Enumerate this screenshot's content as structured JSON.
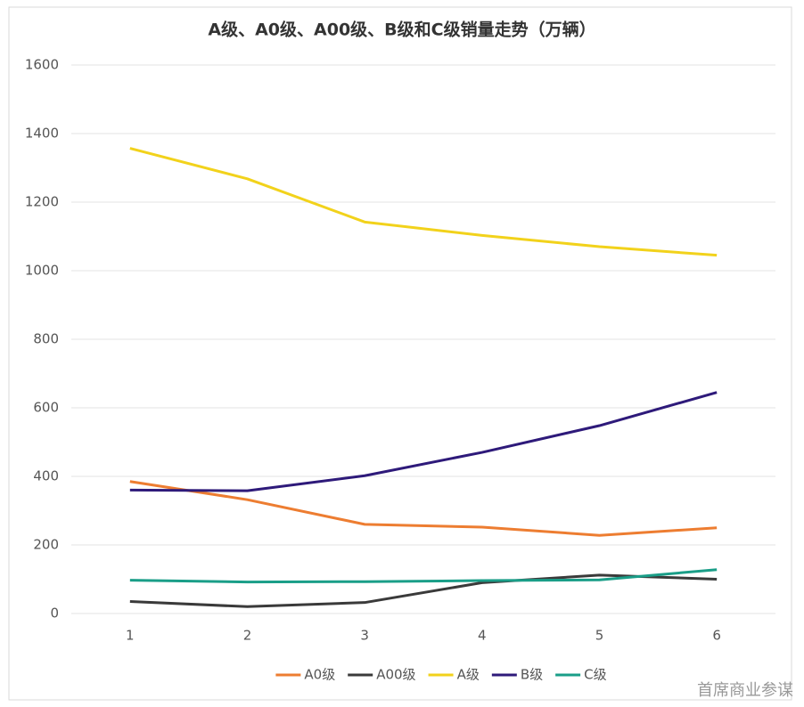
{
  "chart_data": {
    "type": "line",
    "title": "A级、A0级、A00级、B级和C级销量走势（万辆）",
    "x": [
      1,
      2,
      3,
      4,
      5,
      6
    ],
    "xlim": [
      0.5,
      6.5
    ],
    "xticks": [
      1,
      2,
      3,
      4,
      5,
      6
    ],
    "ylim": [
      0,
      1600
    ],
    "yticks": [
      0,
      200,
      400,
      600,
      800,
      1000,
      1200,
      1400,
      1600
    ],
    "grid": true,
    "legend": "bottom",
    "series": [
      {
        "name": "A0级",
        "color": "#ED7D31",
        "values": [
          385,
          332,
          260,
          252,
          228,
          250
        ]
      },
      {
        "name": "A00级",
        "color": "#3A3A3A",
        "values": [
          35,
          20,
          32,
          90,
          112,
          100
        ]
      },
      {
        "name": "A级",
        "color": "#F2D21B",
        "values": [
          1357,
          1268,
          1142,
          1103,
          1070,
          1045
        ]
      },
      {
        "name": "B级",
        "color": "#2E1A7A",
        "values": [
          360,
          358,
          402,
          470,
          548,
          645
        ]
      },
      {
        "name": "C级",
        "color": "#1A9E88",
        "values": [
          97,
          92,
          93,
          96,
          98,
          128
        ]
      }
    ]
  },
  "watermark": "首席商业参谋"
}
